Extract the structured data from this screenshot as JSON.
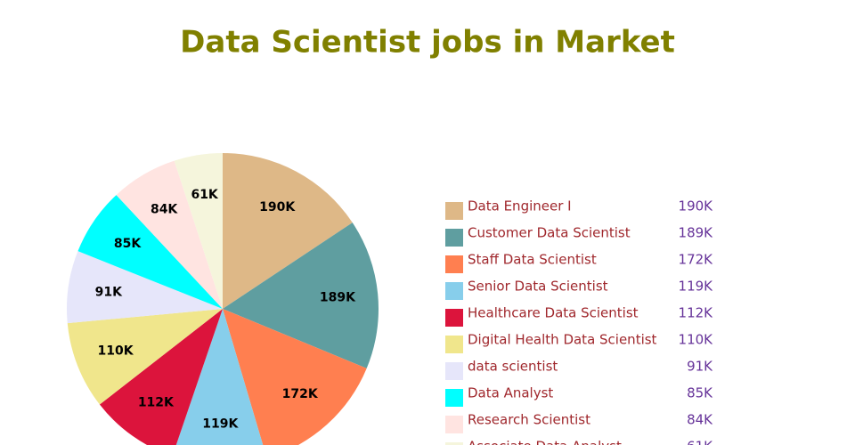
{
  "chart_data": {
    "type": "pie",
    "title": "Data Scientist jobs in Market",
    "categories": [
      "Data Engineer I",
      "Customer Data Scientist",
      "Staff Data Scientist",
      "Senior Data Scientist",
      "Healthcare Data Scientist",
      "Digital Health Data Scientist",
      "data scientist",
      "Data Analyst",
      "Research Scientist",
      "Associate Data Analyst"
    ],
    "values": [
      190000,
      189000,
      172000,
      119000,
      112000,
      110000,
      91000,
      85000,
      84000,
      61000
    ],
    "value_labels": [
      "190K",
      "189K",
      "172K",
      "119K",
      "112K",
      "110K",
      "91K",
      "85K",
      "84K",
      "61K"
    ],
    "colors": [
      "#deb887",
      "#5f9ea0",
      "#ff7f50",
      "#87ceeb",
      "#dc143c",
      "#f0e68c",
      "#e6e6fa",
      "#00ffff",
      "#ffe4e1",
      "#f5f5dc"
    ],
    "legend": "right"
  }
}
